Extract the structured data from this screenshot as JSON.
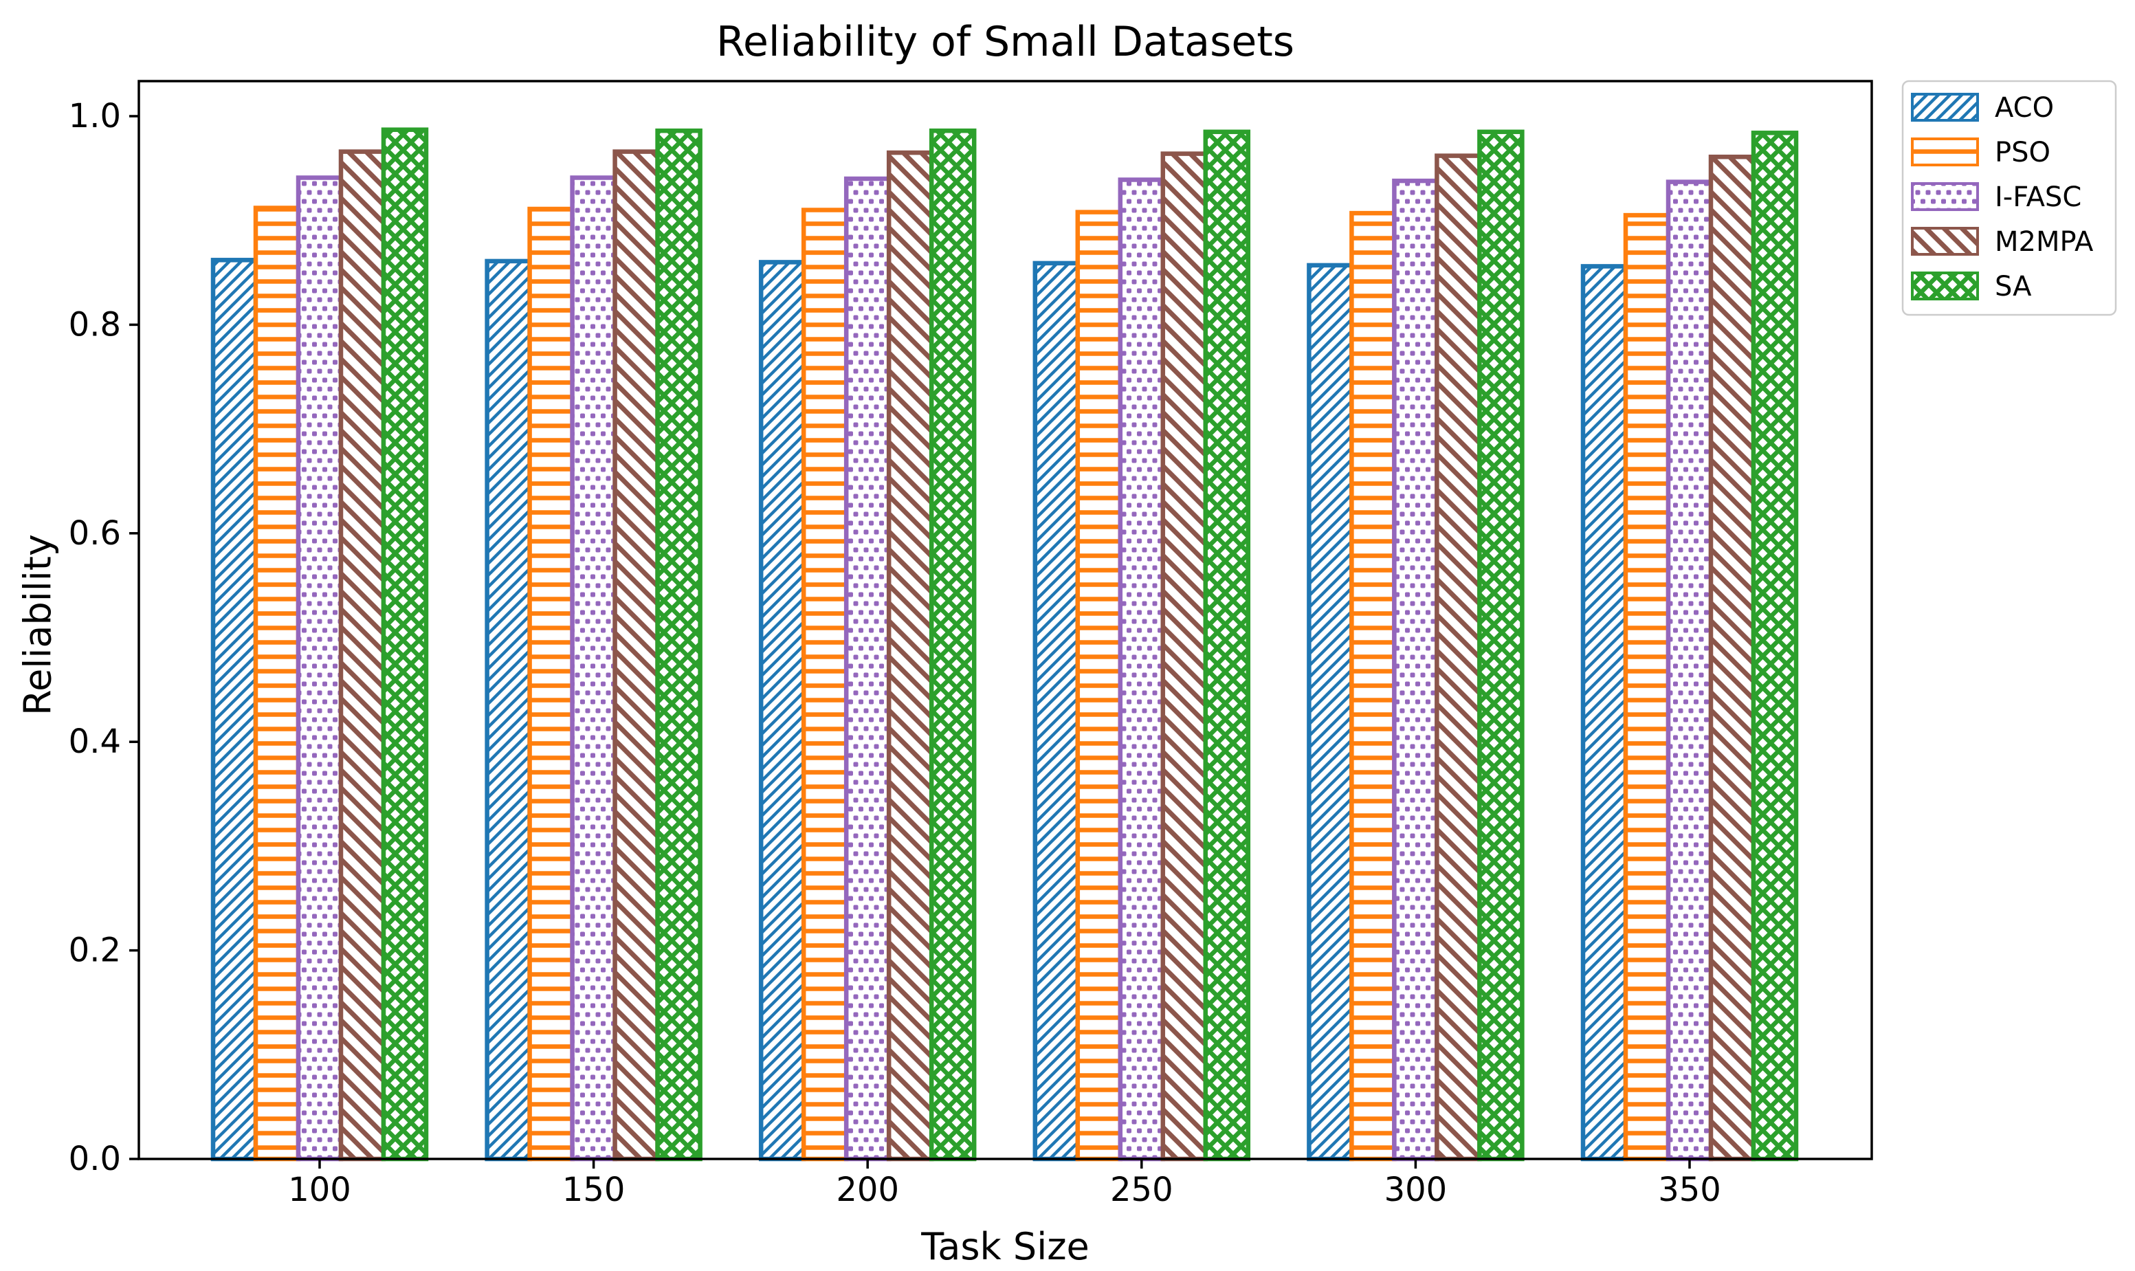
{
  "chart_data": {
    "type": "bar",
    "title": "Reliability of Small Datasets",
    "xlabel": "Task Size",
    "ylabel": "Reliability",
    "categories": [
      "100",
      "150",
      "200",
      "250",
      "300",
      "350"
    ],
    "xtick_values": [
      100,
      150,
      200,
      250,
      300,
      350
    ],
    "series": [
      {
        "name": "ACO",
        "color": "#1f77b4",
        "hatch": "//",
        "values": [
          0.862,
          0.861,
          0.86,
          0.859,
          0.857,
          0.856
        ]
      },
      {
        "name": "PSO",
        "color": "#ff7f0e",
        "hatch": "-",
        "values": [
          0.912,
          0.911,
          0.91,
          0.908,
          0.907,
          0.905
        ]
      },
      {
        "name": "I-FASC",
        "color": "#9467bd",
        "hatch": "..",
        "values": [
          0.941,
          0.941,
          0.94,
          0.939,
          0.938,
          0.937
        ]
      },
      {
        "name": "M2MPA",
        "color": "#8c564b",
        "hatch": "\\\\",
        "values": [
          0.966,
          0.966,
          0.965,
          0.964,
          0.962,
          0.961
        ]
      },
      {
        "name": "SA",
        "color": "#2ca02c",
        "hatch": "xx",
        "values": [
          0.987,
          0.986,
          0.986,
          0.985,
          0.985,
          0.984
        ]
      }
    ],
    "yticks": [
      "0.0",
      "0.2",
      "0.4",
      "0.6",
      "0.8",
      "1.0"
    ],
    "ylim": [
      0.0,
      1.034
    ],
    "grid": false,
    "legend": {
      "position": "outside-upper-right",
      "labels": [
        "ACO",
        "PSO",
        "I-FASC",
        "M2MPA",
        "SA"
      ]
    },
    "bar_fill": "#ffffff",
    "axis_color": "#000000",
    "legend_border_color": "#cccccc"
  }
}
